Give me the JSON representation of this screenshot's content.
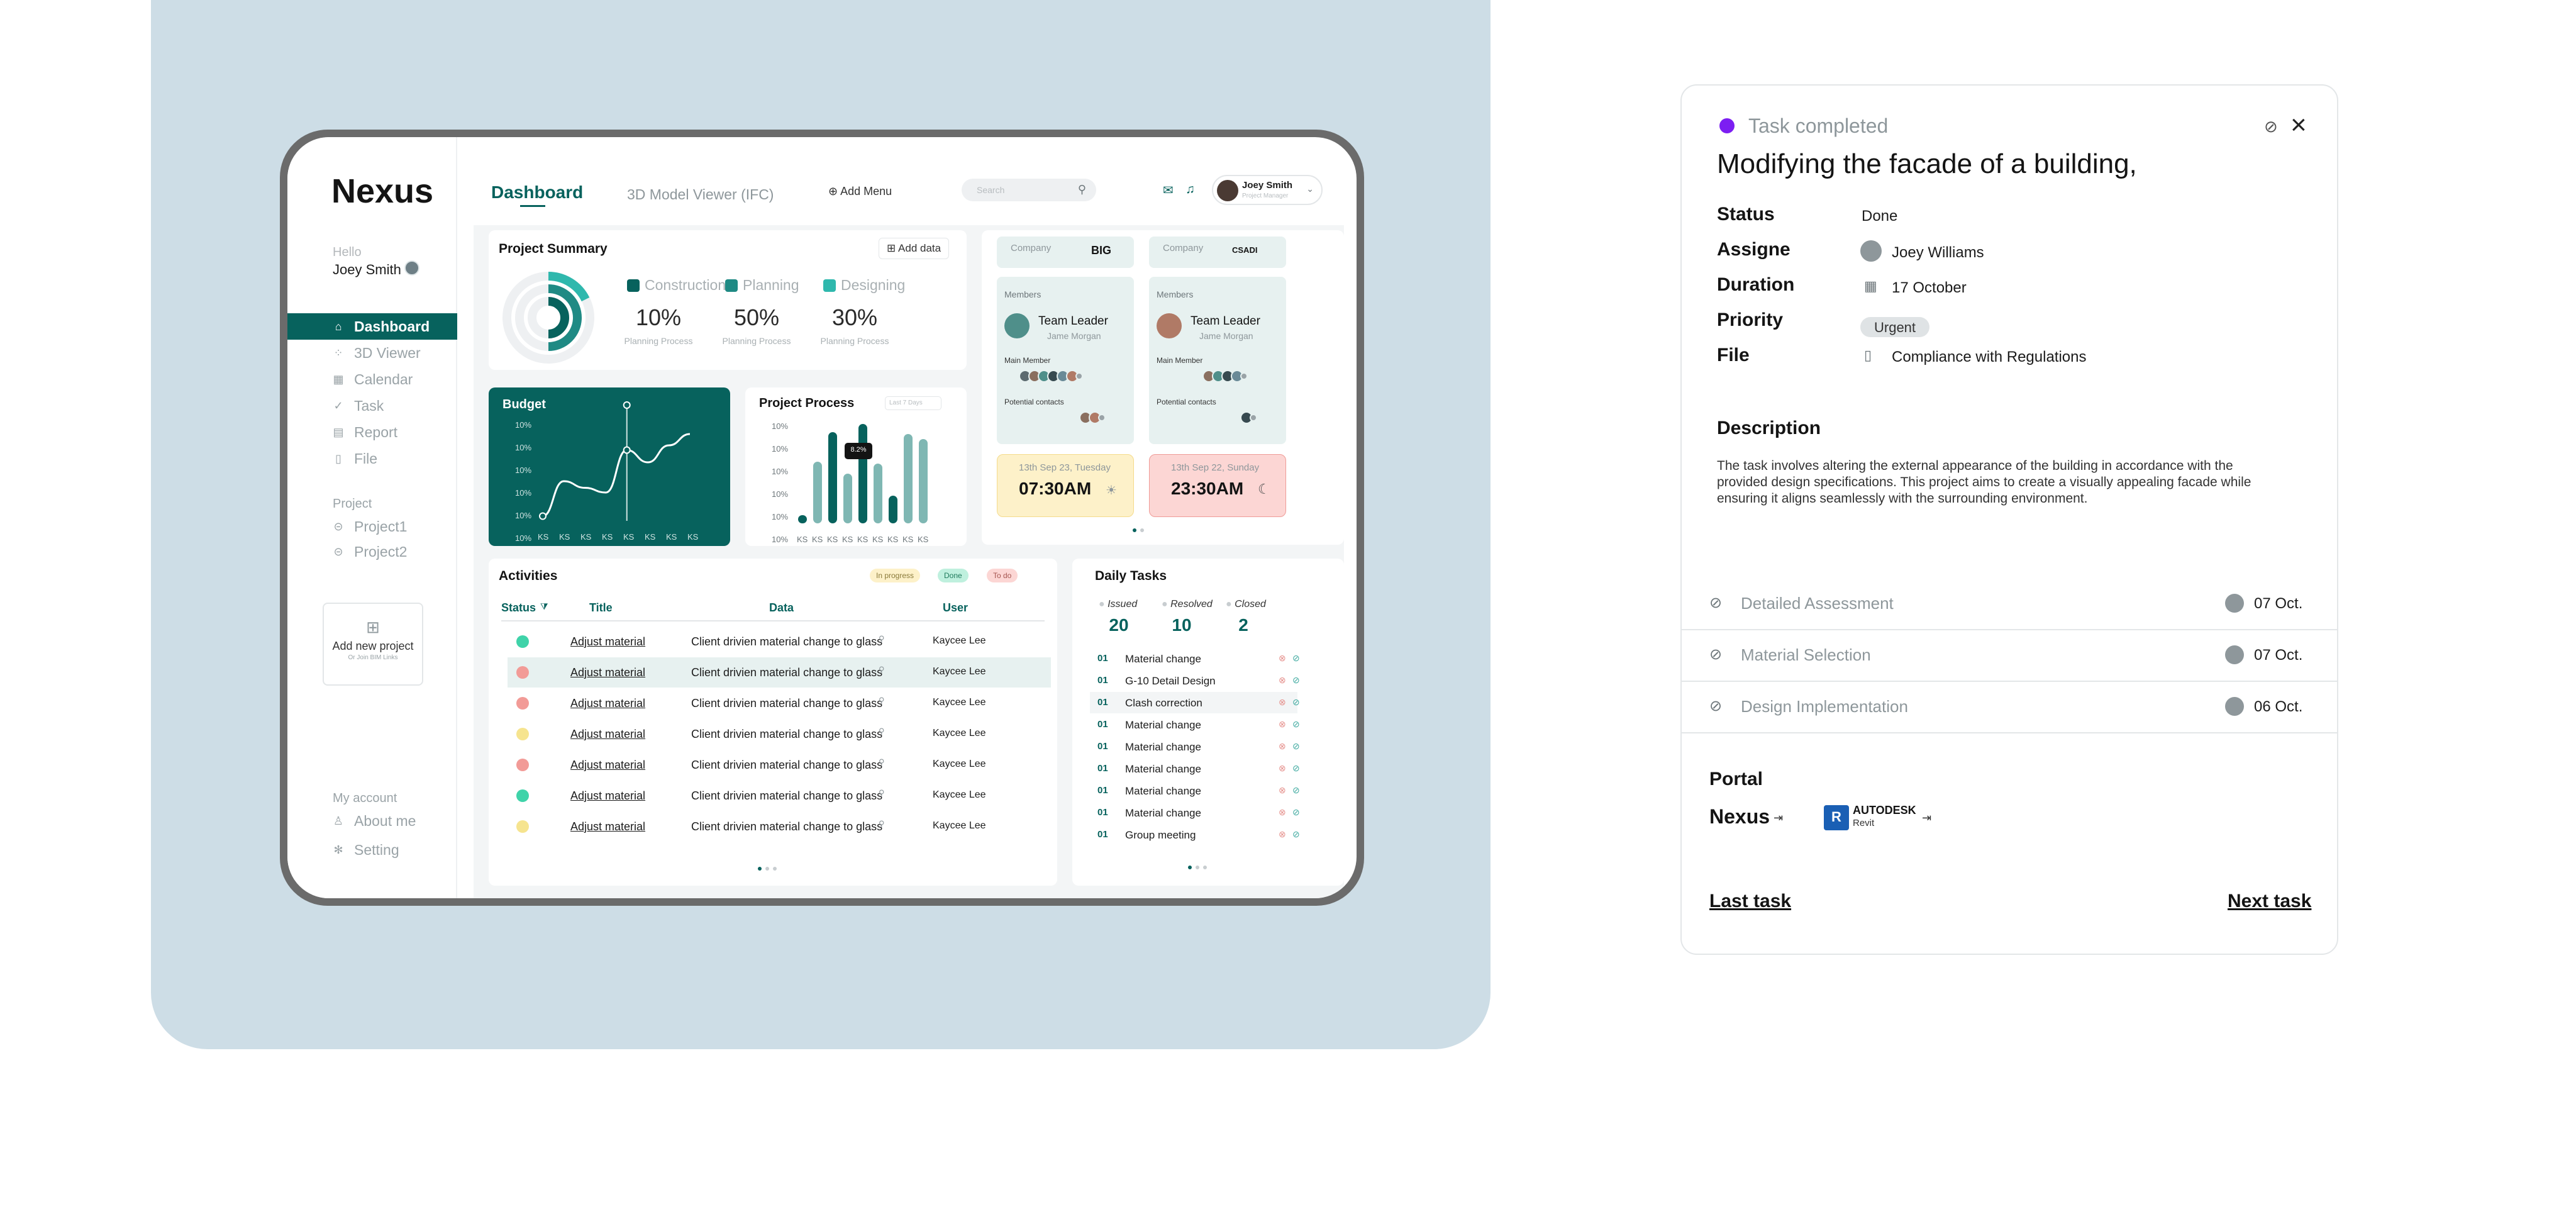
{
  "app": {
    "logo": "Nexus",
    "greeting": "Hello",
    "user_name": "Joey Smith"
  },
  "sidebar": {
    "items": [
      {
        "label": "Dashboard",
        "icon": "home-icon"
      },
      {
        "label": "3D Viewer",
        "icon": "cube-icon"
      },
      {
        "label": "Calendar",
        "icon": "calendar-icon"
      },
      {
        "label": "Task",
        "icon": "task-icon"
      },
      {
        "label": "Report",
        "icon": "report-icon"
      },
      {
        "label": "File",
        "icon": "file-icon"
      }
    ],
    "project_section": "Project",
    "projects": [
      "Project1",
      "Project2"
    ],
    "add_project": {
      "label": "Add new project",
      "sub": "Or Join BIM Links"
    },
    "account_section": "My account",
    "account_items": [
      "About me",
      "Setting"
    ]
  },
  "topbar": {
    "tab_active": "Dashboard",
    "tab_other": "3D Model Viewer (IFC)",
    "add_menu": "Add Menu",
    "search_placeholder": "Search",
    "user": {
      "name": "Joey Smith",
      "role": "Project Manager"
    }
  },
  "project_summary": {
    "title": "Project Summary",
    "add_data": "Add data",
    "legend": [
      {
        "label": "Construction",
        "color": "#07625d",
        "value": "10%",
        "sub": "Planning Process"
      },
      {
        "label": "Planning",
        "color": "#1f8a84",
        "value": "50%",
        "sub": "Planning Process"
      },
      {
        "label": "Designing",
        "color": "#2fb8ad",
        "value": "30%",
        "sub": "Planning Process"
      }
    ]
  },
  "chart_data": [
    {
      "type": "line",
      "title": "Budget",
      "x_tick_labels": [
        "KS",
        "KS",
        "KS",
        "KS",
        "KS",
        "KS",
        "KS",
        "KS"
      ],
      "y_tick_labels": [
        "10%",
        "10%",
        "10%",
        "10%",
        "10%",
        "10%"
      ],
      "values": [
        0.05,
        0.42,
        0.35,
        0.3,
        0.75,
        0.62,
        0.8,
        0.92
      ],
      "grid": false,
      "marker_index": 4
    },
    {
      "type": "bar",
      "title": "Project Process",
      "selector": "Last 7 Days",
      "x_tick_labels": [
        "KS",
        "KS",
        "KS",
        "KS",
        "KS",
        "KS",
        "KS",
        "KS",
        "KS"
      ],
      "y_tick_labels": [
        "10%",
        "10%",
        "10%",
        "10%",
        "10%",
        "10%"
      ],
      "values": [
        0.08,
        0.62,
        0.92,
        0.5,
        1.0,
        0.6,
        0.28,
        0.9,
        0.85
      ],
      "dark_flags": [
        true,
        false,
        true,
        false,
        true,
        false,
        true,
        false,
        false
      ],
      "tooltip": {
        "index": 3,
        "text": "8.2%"
      }
    }
  ],
  "companies": [
    {
      "label": "Company",
      "logo": "BIG",
      "members_label": "Members",
      "role": "Team Leader",
      "leader": "Jame Morgan",
      "main_member": "Main Member",
      "potential": "Potential contacts",
      "time_date": "13th Sep 23, Tuesday",
      "time": "07:30AM",
      "time_icon": "sun-icon"
    },
    {
      "label": "Company",
      "logo": "CSADI",
      "members_label": "Members",
      "role": "Team Leader",
      "leader": "Jame Morgan",
      "main_member": "Main Member",
      "potential": "Potential contacts",
      "time_date": "13th Sep 22, Sunday",
      "time": "23:30AM",
      "time_icon": "moon-icon"
    }
  ],
  "activities": {
    "title": "Activities",
    "pills": [
      "In progress",
      "Done",
      "To do"
    ],
    "headers": [
      "Status",
      "Title",
      "Data",
      "User"
    ],
    "rows": [
      {
        "status": "done",
        "title": "Adjust material",
        "data": "Client drivien material change to glass",
        "user": "Kaycee Lee"
      },
      {
        "status": "todo",
        "title": "Adjust material",
        "data": "Client drivien material change to glass",
        "user": "Kaycee Lee"
      },
      {
        "status": "todo",
        "title": "Adjust material",
        "data": "Client drivien material change to glass",
        "user": "Kaycee Lee"
      },
      {
        "status": "progress",
        "title": "Adjust material",
        "data": "Client drivien material change to glass",
        "user": "Kaycee Lee"
      },
      {
        "status": "todo",
        "title": "Adjust material",
        "data": "Client drivien material change to glass",
        "user": "Kaycee Lee"
      },
      {
        "status": "done",
        "title": "Adjust material",
        "data": "Client drivien material change to glass",
        "user": "Kaycee Lee"
      },
      {
        "status": "progress",
        "title": "Adjust material",
        "data": "Client drivien material change to glass",
        "user": "Kaycee Lee"
      }
    ],
    "status_colors": {
      "done": "#3fd3a9",
      "todo": "#f29b97",
      "progress": "#f6e48f"
    }
  },
  "daily_tasks": {
    "title": "Daily Tasks",
    "stats": [
      {
        "label": "Issued",
        "value": "20"
      },
      {
        "label": "Resolved",
        "value": "10"
      },
      {
        "label": "Closed",
        "value": "2"
      }
    ],
    "rows": [
      {
        "num": "01",
        "title": "Material change"
      },
      {
        "num": "01",
        "title": "G-10 Detail Design"
      },
      {
        "num": "01",
        "title": "Clash correction"
      },
      {
        "num": "01",
        "title": "Material change"
      },
      {
        "num": "01",
        "title": "Material change"
      },
      {
        "num": "01",
        "title": "Material change"
      },
      {
        "num": "01",
        "title": "Material change"
      },
      {
        "num": "01",
        "title": "Material change"
      },
      {
        "num": "01",
        "title": "Group meeting"
      }
    ]
  },
  "detail": {
    "status_top": "Task completed",
    "title": "Modifying the facade of a building,",
    "fields": {
      "status_k": "Status",
      "status_v": "Done",
      "assignee_k": "Assigne",
      "assignee_v": "Joey Williams",
      "duration_k": "Duration",
      "duration_v": "17 October",
      "priority_k": "Priority",
      "priority_v": "Urgent",
      "file_k": "File",
      "file_v": "Compliance with Regulations"
    },
    "description_h": "Description",
    "description": "The task involves altering the external appearance of the building in accordance with the provided design specifications. This project aims to create a visually appealing facade while ensuring it aligns seamlessly with the surrounding environment.",
    "subtasks": [
      {
        "label": "Detailed Assessment",
        "date": "07 Oct."
      },
      {
        "label": "Material Selection",
        "date": "07 Oct."
      },
      {
        "label": "Design Implementation",
        "date": "06 Oct."
      }
    ],
    "portal_h": "Portal",
    "portal_nexus": "Nexus",
    "portal_revit_a": "AUTODESK",
    "portal_revit_b": "Revit",
    "portal_revit_mark": "R",
    "last_task": "Last task",
    "next_task": "Next task"
  }
}
